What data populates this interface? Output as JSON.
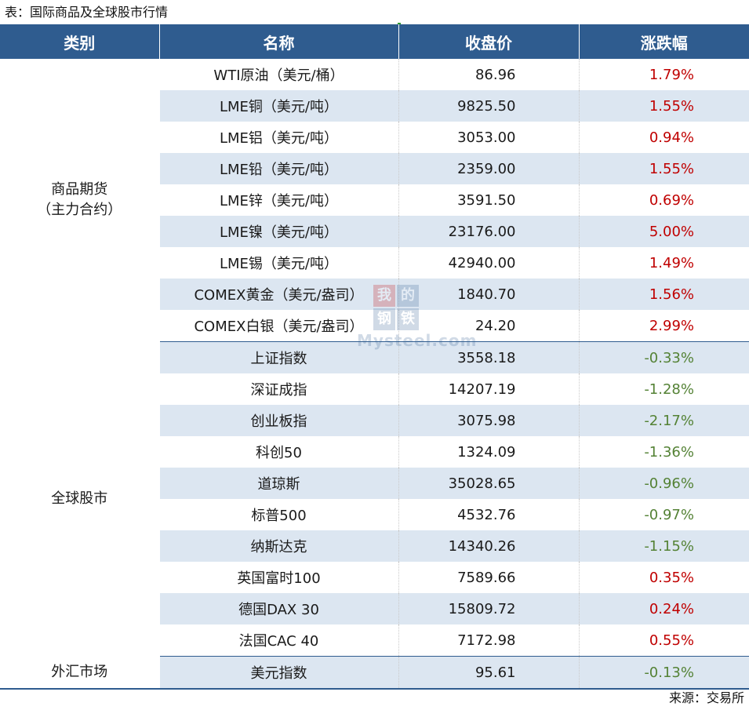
{
  "caption": "表：国际商品及全球股市行情",
  "source": "来源：交易所",
  "watermark": {
    "chars": [
      "我",
      "的",
      "钢",
      "铁"
    ],
    "word": "Mysteel.com"
  },
  "colors": {
    "header_bg": "#2f5c8f",
    "stripe": "#dce6f1",
    "up": "#c00000",
    "down": "#548235"
  },
  "headers": {
    "category": "类别",
    "name": "名称",
    "close": "收盘价",
    "change": "涨跌幅"
  },
  "categories": {
    "commodity_line1": "商品期货",
    "commodity_line2": "（主力合约）",
    "stocks": "全球股市",
    "forex": "外汇市场"
  },
  "rows": [
    {
      "name": "WTI原油（美元/桶）",
      "close": "86.96",
      "change": "1.79%"
    },
    {
      "name": "LME铜（美元/吨）",
      "close": "9825.50",
      "change": "1.55%"
    },
    {
      "name": "LME铝（美元/吨）",
      "close": "3053.00",
      "change": "0.94%"
    },
    {
      "name": "LME铅（美元/吨）",
      "close": "2359.00",
      "change": "1.55%"
    },
    {
      "name": "LME锌（美元/吨）",
      "close": "3591.50",
      "change": "0.69%"
    },
    {
      "name": "LME镍（美元/吨）",
      "close": "23176.00",
      "change": "5.00%"
    },
    {
      "name": "LME锡（美元/吨）",
      "close": "42940.00",
      "change": "1.49%"
    },
    {
      "name": "COMEX黄金（美元/盎司）",
      "close": "1840.70",
      "change": "1.56%"
    },
    {
      "name": "COMEX白银（美元/盎司）",
      "close": "24.20",
      "change": "2.99%"
    },
    {
      "name": "上证指数",
      "close": "3558.18",
      "change": "-0.33%"
    },
    {
      "name": "深证成指",
      "close": "14207.19",
      "change": "-1.28%"
    },
    {
      "name": "创业板指",
      "close": "3075.98",
      "change": "-2.17%"
    },
    {
      "name": "科创50",
      "close": "1324.09",
      "change": "-1.36%"
    },
    {
      "name": "道琼斯",
      "close": "35028.65",
      "change": "-0.96%"
    },
    {
      "name": "标普500",
      "close": "4532.76",
      "change": "-0.97%"
    },
    {
      "name": "纳斯达克",
      "close": "14340.26",
      "change": "-1.15%"
    },
    {
      "name": "英国富时100",
      "close": "7589.66",
      "change": "0.35%"
    },
    {
      "name": "德国DAX 30",
      "close": "15809.72",
      "change": "0.24%"
    },
    {
      "name": "法国CAC 40",
      "close": "7172.98",
      "change": "0.55%"
    },
    {
      "name": "美元指数",
      "close": "95.61",
      "change": "-0.13%"
    }
  ]
}
